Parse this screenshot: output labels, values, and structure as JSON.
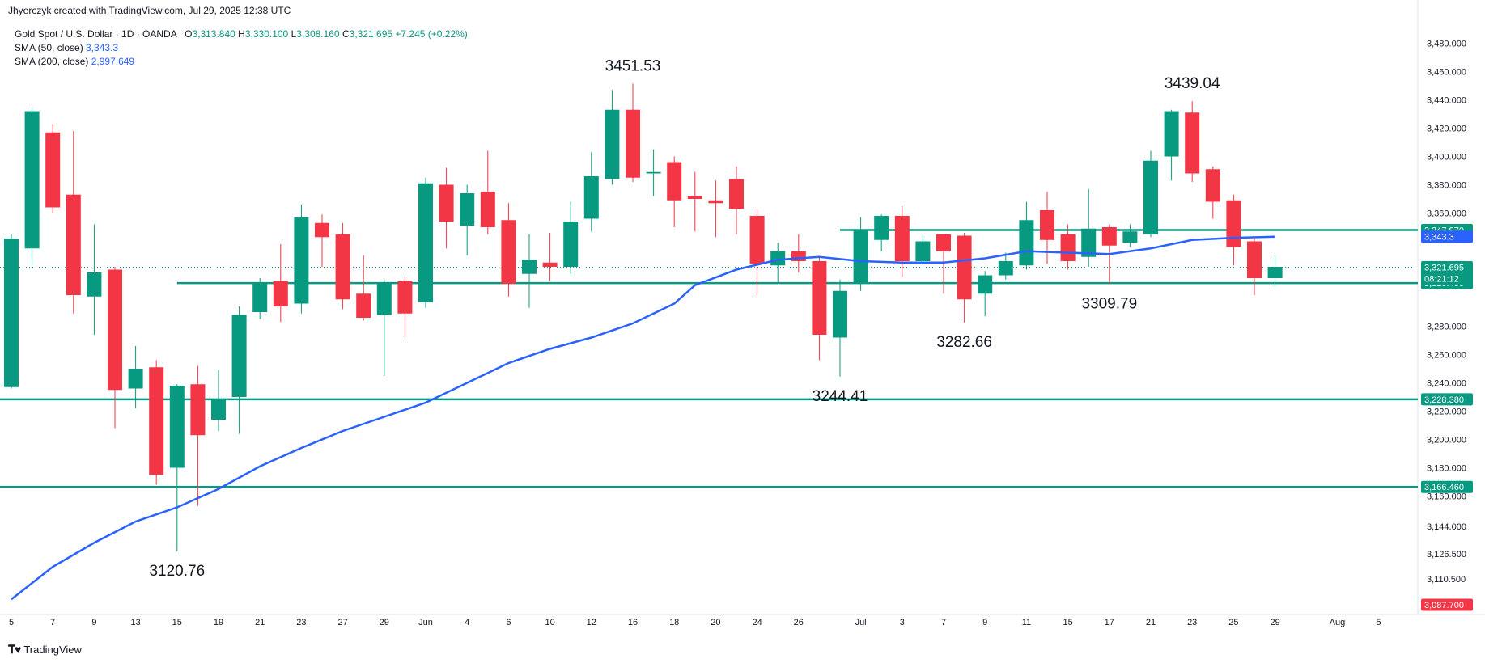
{
  "header": {
    "created_by": "Jhyerczyk created with TradingView.com, Jul 29, 2025 12:38 UTC"
  },
  "legend": {
    "symbol": "Gold Spot / U.S. Dollar · 1D · OANDA",
    "open_label": "O",
    "open": "3,313.840",
    "high_label": "H",
    "high": "3,330.100",
    "low_label": "L",
    "low": "3,308.160",
    "close_label": "C",
    "close": "3,321.695",
    "change": "+7.245 (+0.22%)",
    "sma50_label": "SMA (50, close)",
    "sma50_value": "3,343.3",
    "sma200_label": "SMA (200, close)",
    "sma200_value": "2,997.649"
  },
  "footer": {
    "brand": "TradingView"
  },
  "colors": {
    "up": "#089981",
    "down": "#f23645",
    "sma": "#2962ff",
    "level": "#089981",
    "text": "#131722"
  },
  "chart_data": {
    "type": "candlestick",
    "yaxis_ticks": [
      "3,480.000",
      "3,460.000",
      "3,440.000",
      "3,420.000",
      "3,400.000",
      "3,380.000",
      "3,360.000",
      "3,280.000",
      "3,260.000",
      "3,240.000",
      "3,220.000",
      "3,200.000",
      "3,180.000",
      "3,160.000",
      "3,144.000",
      "3,126.500",
      "3,110.500"
    ],
    "xaxis_ticks": [
      "5",
      "7",
      "9",
      "13",
      "15",
      "19",
      "21",
      "23",
      "27",
      "29",
      "Jun",
      "4",
      "6",
      "10",
      "12",
      "16",
      "18",
      "20",
      "24",
      "26",
      "Jul",
      "3",
      "7",
      "9",
      "11",
      "15",
      "17",
      "21",
      "23",
      "25",
      "29",
      "Aug",
      "5"
    ],
    "x_days": [
      {
        "label": "5",
        "t": 0
      },
      {
        "label": "7",
        "t": 2
      },
      {
        "label": "9",
        "t": 4
      },
      {
        "label": "13",
        "t": 6
      },
      {
        "label": "15",
        "t": 8
      },
      {
        "label": "19",
        "t": 10
      },
      {
        "label": "21",
        "t": 12
      },
      {
        "label": "23",
        "t": 14
      },
      {
        "label": "27",
        "t": 16
      },
      {
        "label": "29",
        "t": 18
      },
      {
        "label": "Jun",
        "t": 20
      },
      {
        "label": "4",
        "t": 22
      },
      {
        "label": "6",
        "t": 24
      },
      {
        "label": "10",
        "t": 26
      },
      {
        "label": "12",
        "t": 28
      },
      {
        "label": "16",
        "t": 30
      },
      {
        "label": "18",
        "t": 32
      },
      {
        "label": "20",
        "t": 34
      },
      {
        "label": "24",
        "t": 36
      },
      {
        "label": "26",
        "t": 38
      },
      {
        "label": "Jul",
        "t": 41
      },
      {
        "label": "3",
        "t": 43
      },
      {
        "label": "7",
        "t": 45
      },
      {
        "label": "9",
        "t": 47
      },
      {
        "label": "11",
        "t": 49
      },
      {
        "label": "15",
        "t": 51
      },
      {
        "label": "17",
        "t": 53
      },
      {
        "label": "21",
        "t": 55
      },
      {
        "label": "23",
        "t": 57
      },
      {
        "label": "25",
        "t": 59
      },
      {
        "label": "29",
        "t": 61
      },
      {
        "label": "Aug",
        "t": 64
      },
      {
        "label": "5",
        "t": 66
      }
    ],
    "candles": [
      {
        "t": 0,
        "o": 3237,
        "h": 3345,
        "l": 3236,
        "c": 3342
      },
      {
        "t": 1,
        "o": 3335,
        "h": 3435,
        "l": 3323,
        "c": 3432
      },
      {
        "t": 2,
        "o": 3417,
        "h": 3423,
        "l": 3360,
        "c": 3364
      },
      {
        "t": 3,
        "o": 3373,
        "h": 3418,
        "l": 3289,
        "c": 3302
      },
      {
        "t": 4,
        "o": 3301,
        "h": 3352,
        "l": 3274,
        "c": 3318
      },
      {
        "t": 5,
        "o": 3320,
        "h": 3322,
        "l": 3208,
        "c": 3235
      },
      {
        "t": 6,
        "o": 3236,
        "h": 3266,
        "l": 3222,
        "c": 3250
      },
      {
        "t": 7,
        "o": 3251,
        "h": 3256,
        "l": 3168,
        "c": 3175
      },
      {
        "t": 8,
        "o": 3180,
        "h": 3239,
        "l": 3121,
        "c": 3238
      },
      {
        "t": 9,
        "o": 3239,
        "h": 3252,
        "l": 3153,
        "c": 3203
      },
      {
        "t": 10,
        "o": 3214,
        "h": 3249,
        "l": 3206,
        "c": 3228
      },
      {
        "t": 11,
        "o": 3230,
        "h": 3294,
        "l": 3204,
        "c": 3288
      },
      {
        "t": 12,
        "o": 3290,
        "h": 3314,
        "l": 3285,
        "c": 3310
      },
      {
        "t": 13,
        "o": 3312,
        "h": 3338,
        "l": 3283,
        "c": 3294
      },
      {
        "t": 14,
        "o": 3296,
        "h": 3366,
        "l": 3289,
        "c": 3357
      },
      {
        "t": 15,
        "o": 3353,
        "h": 3359,
        "l": 3322,
        "c": 3343
      },
      {
        "t": 16,
        "o": 3345,
        "h": 3353,
        "l": 3292,
        "c": 3299
      },
      {
        "t": 17,
        "o": 3303,
        "h": 3330,
        "l": 3284,
        "c": 3286
      },
      {
        "t": 18,
        "o": 3288,
        "h": 3313,
        "l": 3245,
        "c": 3310
      },
      {
        "t": 19,
        "o": 3312,
        "h": 3315,
        "l": 3272,
        "c": 3289
      },
      {
        "t": 20,
        "o": 3297,
        "h": 3385,
        "l": 3293,
        "c": 3381
      },
      {
        "t": 21,
        "o": 3380,
        "h": 3392,
        "l": 3335,
        "c": 3354
      },
      {
        "t": 22,
        "o": 3351,
        "h": 3380,
        "l": 3330,
        "c": 3374
      },
      {
        "t": 23,
        "o": 3375,
        "h": 3404,
        "l": 3345,
        "c": 3350
      },
      {
        "t": 24,
        "o": 3355,
        "h": 3367,
        "l": 3301,
        "c": 3310
      },
      {
        "t": 25,
        "o": 3317,
        "h": 3345,
        "l": 3293,
        "c": 3327
      },
      {
        "t": 26,
        "o": 3325,
        "h": 3346,
        "l": 3312,
        "c": 3322
      },
      {
        "t": 27,
        "o": 3322,
        "h": 3368,
        "l": 3317,
        "c": 3354
      },
      {
        "t": 28,
        "o": 3356,
        "h": 3403,
        "l": 3347,
        "c": 3386
      },
      {
        "t": 29,
        "o": 3384,
        "h": 3447,
        "l": 3380,
        "c": 3433
      },
      {
        "t": 30,
        "o": 3433,
        "h": 3451.53,
        "l": 3382,
        "c": 3385
      },
      {
        "t": 31,
        "o": 3388,
        "h": 3405,
        "l": 3372,
        "c": 3389
      },
      {
        "t": 32,
        "o": 3396,
        "h": 3400,
        "l": 3350,
        "c": 3369
      },
      {
        "t": 33,
        "o": 3372,
        "h": 3389,
        "l": 3347,
        "c": 3370
      },
      {
        "t": 34,
        "o": 3369,
        "h": 3383,
        "l": 3343,
        "c": 3367
      },
      {
        "t": 35,
        "o": 3384,
        "h": 3393,
        "l": 3345,
        "c": 3363
      },
      {
        "t": 36,
        "o": 3358,
        "h": 3363,
        "l": 3302,
        "c": 3324
      },
      {
        "t": 37,
        "o": 3323,
        "h": 3339,
        "l": 3311,
        "c": 3333
      },
      {
        "t": 38,
        "o": 3333,
        "h": 3345,
        "l": 3318,
        "c": 3326
      },
      {
        "t": 39,
        "o": 3326,
        "h": 3329,
        "l": 3256,
        "c": 3274
      },
      {
        "t": 40,
        "o": 3272,
        "h": 3313,
        "l": 3244.41,
        "c": 3305
      },
      {
        "t": 41,
        "o": 3310,
        "h": 3357,
        "l": 3305,
        "c": 3348
      },
      {
        "t": 42,
        "o": 3341,
        "h": 3359,
        "l": 3333,
        "c": 3358
      },
      {
        "t": 43,
        "o": 3358,
        "h": 3365,
        "l": 3315,
        "c": 3326
      },
      {
        "t": 44,
        "o": 3326,
        "h": 3344,
        "l": 3323,
        "c": 3340
      },
      {
        "t": 45,
        "o": 3345,
        "h": 3345,
        "l": 3303,
        "c": 3333
      },
      {
        "t": 46,
        "o": 3344,
        "h": 3346,
        "l": 3282.66,
        "c": 3299
      },
      {
        "t": 47,
        "o": 3303,
        "h": 3319,
        "l": 3287,
        "c": 3316
      },
      {
        "t": 48,
        "o": 3316,
        "h": 3332,
        "l": 3313,
        "c": 3326
      },
      {
        "t": 49,
        "o": 3323,
        "h": 3368,
        "l": 3320,
        "c": 3355
      },
      {
        "t": 50,
        "o": 3362,
        "h": 3375,
        "l": 3324,
        "c": 3341
      },
      {
        "t": 51,
        "o": 3345,
        "h": 3352,
        "l": 3320,
        "c": 3326
      },
      {
        "t": 52,
        "o": 3329,
        "h": 3377,
        "l": 3322,
        "c": 3349
      },
      {
        "t": 53,
        "o": 3350,
        "h": 3352,
        "l": 3309.79,
        "c": 3337
      },
      {
        "t": 54,
        "o": 3339,
        "h": 3352,
        "l": 3336,
        "c": 3347
      },
      {
        "t": 55,
        "o": 3345,
        "h": 3404,
        "l": 3343,
        "c": 3397
      },
      {
        "t": 56,
        "o": 3400,
        "h": 3433,
        "l": 3383,
        "c": 3432
      },
      {
        "t": 57,
        "o": 3431,
        "h": 3439.04,
        "l": 3382,
        "c": 3388
      },
      {
        "t": 58,
        "o": 3391,
        "h": 3393,
        "l": 3356,
        "c": 3368
      },
      {
        "t": 59,
        "o": 3369,
        "h": 3373,
        "l": 3323,
        "c": 3336
      },
      {
        "t": 60,
        "o": 3340,
        "h": 3342,
        "l": 3302,
        "c": 3314
      },
      {
        "t": 61,
        "o": 3314,
        "h": 3330,
        "l": 3308,
        "c": 3322
      }
    ],
    "sma50": [
      {
        "t": 0,
        "v": 3087
      },
      {
        "t": 2,
        "v": 3110
      },
      {
        "t": 4,
        "v": 3127
      },
      {
        "t": 6,
        "v": 3142
      },
      {
        "t": 8,
        "v": 3152
      },
      {
        "t": 10,
        "v": 3165
      },
      {
        "t": 12,
        "v": 3181
      },
      {
        "t": 14,
        "v": 3194
      },
      {
        "t": 16,
        "v": 3206
      },
      {
        "t": 18,
        "v": 3216
      },
      {
        "t": 20,
        "v": 3226
      },
      {
        "t": 22,
        "v": 3240
      },
      {
        "t": 24,
        "v": 3254
      },
      {
        "t": 26,
        "v": 3264
      },
      {
        "t": 28,
        "v": 3272
      },
      {
        "t": 30,
        "v": 3282
      },
      {
        "t": 32,
        "v": 3296
      },
      {
        "t": 33,
        "v": 3309
      },
      {
        "t": 35,
        "v": 3320
      },
      {
        "t": 37,
        "v": 3327
      },
      {
        "t": 39,
        "v": 3329
      },
      {
        "t": 41,
        "v": 3326
      },
      {
        "t": 43,
        "v": 3325
      },
      {
        "t": 45,
        "v": 3325
      },
      {
        "t": 47,
        "v": 3328
      },
      {
        "t": 49,
        "v": 3333
      },
      {
        "t": 51,
        "v": 3332
      },
      {
        "t": 53,
        "v": 3331
      },
      {
        "t": 55,
        "v": 3335
      },
      {
        "t": 57,
        "v": 3341
      },
      {
        "t": 59,
        "v": 3342.5
      },
      {
        "t": 61,
        "v": 3343.3
      }
    ],
    "levels": [
      {
        "value": 3347.97,
        "label": "3,347.970",
        "from_t": 40
      },
      {
        "value": 3310.48,
        "label": "3,310.480",
        "from_t": 8
      },
      {
        "value": 3228.38,
        "label": "3,228.380",
        "from_t": 0
      },
      {
        "value": 3166.46,
        "label": "3,166.460",
        "from_t": 0
      }
    ],
    "price_tags": [
      {
        "value": 3343.3,
        "label": "3,343.3",
        "color": "#2962ff"
      },
      {
        "value": 3321.695,
        "label": "3,321.695",
        "sub": "08:21:12",
        "color": "#089981"
      },
      {
        "value": 3087.7,
        "label": "3,087.700",
        "color": "#f23645"
      }
    ],
    "annotations": [
      {
        "text": "3451.53",
        "t": 30,
        "v": 3451.53,
        "pos": "above"
      },
      {
        "text": "3439.04",
        "t": 57,
        "v": 3439.04,
        "pos": "above"
      },
      {
        "text": "3120.76",
        "t": 8,
        "v": 3120.76,
        "pos": "below"
      },
      {
        "text": "3244.41",
        "t": 40,
        "v": 3244.41,
        "pos": "below"
      },
      {
        "text": "3282.66",
        "t": 46,
        "v": 3282.66,
        "pos": "below"
      },
      {
        "text": "3309.79",
        "t": 53,
        "v": 3309.79,
        "pos": "below"
      }
    ],
    "last_price_line": 3321.695
  }
}
